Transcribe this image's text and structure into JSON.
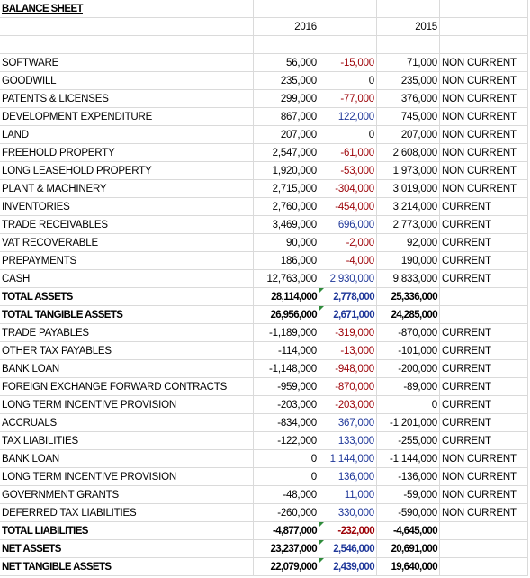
{
  "header": {
    "title": "BALANCE SHEET",
    "years": [
      "2016",
      "2015"
    ]
  },
  "table": {
    "rows": [
      {
        "label": "SOFTWARE",
        "y2016": "56,000",
        "change": "-15,000",
        "y2015": "71,000",
        "class": "NON CURRENT"
      },
      {
        "label": "GOODWILL",
        "y2016": "235,000",
        "change": "0",
        "y2015": "235,000",
        "class": "NON CURRENT"
      },
      {
        "label": "PATENTS & LICENSES",
        "y2016": "299,000",
        "change": "-77,000",
        "y2015": "376,000",
        "class": "NON CURRENT"
      },
      {
        "label": "DEVELOPMENT EXPENDITURE",
        "y2016": "867,000",
        "change": "122,000",
        "y2015": "745,000",
        "class": "NON CURRENT"
      },
      {
        "label": "LAND",
        "y2016": "207,000",
        "change": "0",
        "y2015": "207,000",
        "class": "NON CURRENT"
      },
      {
        "label": "FREEHOLD PROPERTY",
        "y2016": "2,547,000",
        "change": "-61,000",
        "y2015": "2,608,000",
        "class": "NON CURRENT"
      },
      {
        "label": "LONG LEASEHOLD PROPERTY",
        "y2016": "1,920,000",
        "change": "-53,000",
        "y2015": "1,973,000",
        "class": "NON CURRENT"
      },
      {
        "label": "PLANT & MACHINERY",
        "y2016": "2,715,000",
        "change": "-304,000",
        "y2015": "3,019,000",
        "class": "NON CURRENT"
      },
      {
        "label": "INVENTORIES",
        "y2016": "2,760,000",
        "change": "-454,000",
        "y2015": "3,214,000",
        "class": "CURRENT"
      },
      {
        "label": "TRADE RECEIVABLES",
        "y2016": "3,469,000",
        "change": "696,000",
        "y2015": "2,773,000",
        "class": "CURRENT"
      },
      {
        "label": "VAT RECOVERABLE",
        "y2016": "90,000",
        "change": "-2,000",
        "y2015": "92,000",
        "class": "CURRENT"
      },
      {
        "label": "PREPAYMENTS",
        "y2016": "186,000",
        "change": "-4,000",
        "y2015": "190,000",
        "class": "CURRENT"
      },
      {
        "label": "CASH",
        "y2016": "12,763,000",
        "change": "2,930,000",
        "y2015": "9,833,000",
        "class": "CURRENT"
      },
      {
        "label": "TOTAL ASSETS",
        "y2016": "28,114,000",
        "change": "2,778,000",
        "y2015": "25,336,000",
        "style": "total"
      },
      {
        "label": "TOTAL TANGIBLE ASSETS",
        "y2016": "26,956,000",
        "change": "2,671,000",
        "y2015": "24,285,000",
        "style": "total"
      },
      {
        "label": "TRADE PAYABLES",
        "y2016": "-1,189,000",
        "change": "-319,000",
        "y2015": "-870,000",
        "class": "CURRENT"
      },
      {
        "label": "OTHER TAX PAYABLES",
        "y2016": "-114,000",
        "change": "-13,000",
        "y2015": "-101,000",
        "class": "CURRENT"
      },
      {
        "label": "BANK LOAN",
        "y2016": "-1,148,000",
        "change": "-948,000",
        "y2015": "-200,000",
        "class": "CURRENT"
      },
      {
        "label": "FOREIGN EXCHANGE FORWARD CONTRACTS",
        "y2016": "-959,000",
        "change": "-870,000",
        "y2015": "-89,000",
        "class": "CURRENT"
      },
      {
        "label": "LONG TERM INCENTIVE PROVISION",
        "y2016": "-203,000",
        "change": "-203,000",
        "y2015": "0",
        "class": "CURRENT"
      },
      {
        "label": "ACCRUALS",
        "y2016": "-834,000",
        "change": "367,000",
        "y2015": "-1,201,000",
        "class": "CURRENT"
      },
      {
        "label": "TAX LIABILITIES",
        "y2016": "-122,000",
        "change": "133,000",
        "y2015": "-255,000",
        "class": "CURRENT"
      },
      {
        "label": "BANK LOAN",
        "y2016": "0",
        "change": "1,144,000",
        "y2015": "-1,144,000",
        "class": "NON CURRENT"
      },
      {
        "label": "LONG TERM INCENTIVE PROVISION",
        "y2016": "0",
        "change": "136,000",
        "y2015": "-136,000",
        "class": "NON CURRENT"
      },
      {
        "label": "GOVERNMENT GRANTS",
        "y2016": "-48,000",
        "change": "11,000",
        "y2015": "-59,000",
        "class": "NON CURRENT"
      },
      {
        "label": "DEFERRED TAX LIABILITIES",
        "y2016": "-260,000",
        "change": "330,000",
        "y2015": "-590,000",
        "class": "NON CURRENT"
      },
      {
        "label": "TOTAL LIABILITIES",
        "y2016": "-4,877,000",
        "change": "-232,000",
        "y2015": "-4,645,000",
        "style": "total"
      },
      {
        "label": "NET ASSETS",
        "y2016": "23,237,000",
        "change": "2,546,000",
        "y2015": "20,691,000",
        "style": "total"
      },
      {
        "label": "NET TANGIBLE ASSETS",
        "y2016": "22,079,000",
        "change": "2,439,000",
        "y2015": "19,640,000",
        "style": "total"
      }
    ]
  }
}
